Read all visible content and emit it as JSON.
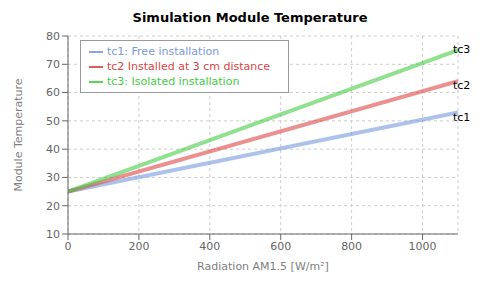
{
  "chart_data": {
    "type": "line",
    "title": "Simulation Module Temperature",
    "xlabel": "Radiation AM1.5 [W/m²]",
    "ylabel": "Module Temperature",
    "x": [
      0,
      1100
    ],
    "series": [
      {
        "name": "tc1: Free installation",
        "color": "#7799dd",
        "values": [
          25.0,
          53.0
        ]
      },
      {
        "name": "tc2 Installed at 3 cm distance",
        "color": "#dd4444",
        "values": [
          25.0,
          64.0
        ]
      },
      {
        "name": "tc3: Isolated installation",
        "color": "#44cc44",
        "values": [
          25.0,
          75.0
        ]
      }
    ],
    "xlim": [
      0,
      1100
    ],
    "ylim": [
      10,
      80
    ],
    "xticks": [
      0,
      200,
      400,
      600,
      800,
      1000
    ],
    "yticks": [
      10,
      20,
      30,
      40,
      50,
      60,
      70,
      80
    ],
    "grid": true,
    "legend": "upper left",
    "annotations": [
      {
        "text": "tc3",
        "x": 1080,
        "y": 75.5
      },
      {
        "text": "tc2",
        "x": 1080,
        "y": 62.5
      },
      {
        "text": "tc1",
        "x": 1080,
        "y": 51.5
      }
    ]
  }
}
